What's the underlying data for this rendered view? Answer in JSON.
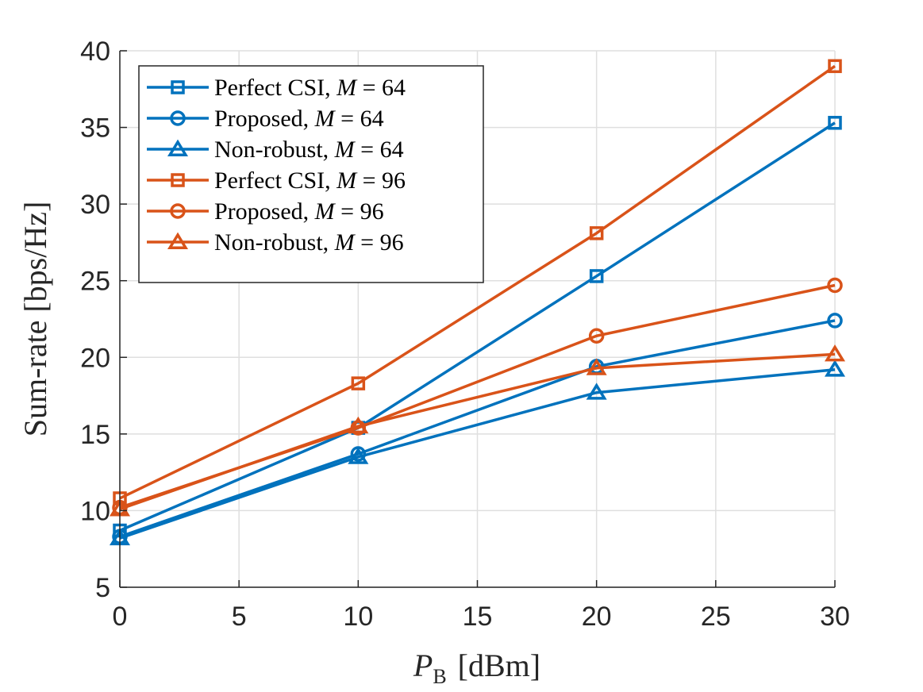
{
  "chart_data": {
    "type": "line",
    "title": "",
    "xlabel": "P_B [dBm]",
    "xlabel_main": "P",
    "xlabel_sub": "B",
    "xlabel_unit": "[dBm]",
    "ylabel": "Sum-rate [bps/Hz]",
    "xlim": [
      0,
      30
    ],
    "ylim": [
      5,
      40
    ],
    "xticks": [
      0,
      5,
      10,
      15,
      20,
      25,
      30
    ],
    "yticks": [
      5,
      10,
      15,
      20,
      25,
      30,
      35,
      40
    ],
    "grid": true,
    "legend_position": "top-left",
    "x": [
      0,
      10,
      20,
      30
    ],
    "series": [
      {
        "name": "Perfect CSI, M = 64",
        "label_text": "Perfect CSI, ",
        "label_var": "M",
        "label_eq": " = 64",
        "color": "#0072BD",
        "marker": "square",
        "values": [
          8.7,
          15.4,
          25.3,
          35.3
        ]
      },
      {
        "name": "Proposed, M = 64",
        "label_text": "Proposed, ",
        "label_var": "M",
        "label_eq": " = 64",
        "color": "#0072BD",
        "marker": "circle",
        "values": [
          8.3,
          13.7,
          19.4,
          22.4
        ]
      },
      {
        "name": "Non-robust, M = 64",
        "label_text": "Non-robust, ",
        "label_var": "M",
        "label_eq": " = 64",
        "color": "#0072BD",
        "marker": "triangle",
        "values": [
          8.2,
          13.5,
          17.7,
          19.2
        ]
      },
      {
        "name": "Perfect CSI, M = 96",
        "label_text": "Perfect CSI, ",
        "label_var": "M",
        "label_eq": " = 96",
        "color": "#D95319",
        "marker": "square",
        "values": [
          10.8,
          18.3,
          28.1,
          39.0
        ]
      },
      {
        "name": "Proposed, M = 96",
        "label_text": "Proposed, ",
        "label_var": "M",
        "label_eq": " = 96",
        "color": "#D95319",
        "marker": "circle",
        "values": [
          10.2,
          15.4,
          21.4,
          24.7
        ]
      },
      {
        "name": "Non-robust, M = 96",
        "label_text": "Non-robust, ",
        "label_var": "M",
        "label_eq": " = 96",
        "color": "#D95319",
        "marker": "triangle",
        "values": [
          10.1,
          15.5,
          19.3,
          20.2
        ]
      }
    ]
  }
}
